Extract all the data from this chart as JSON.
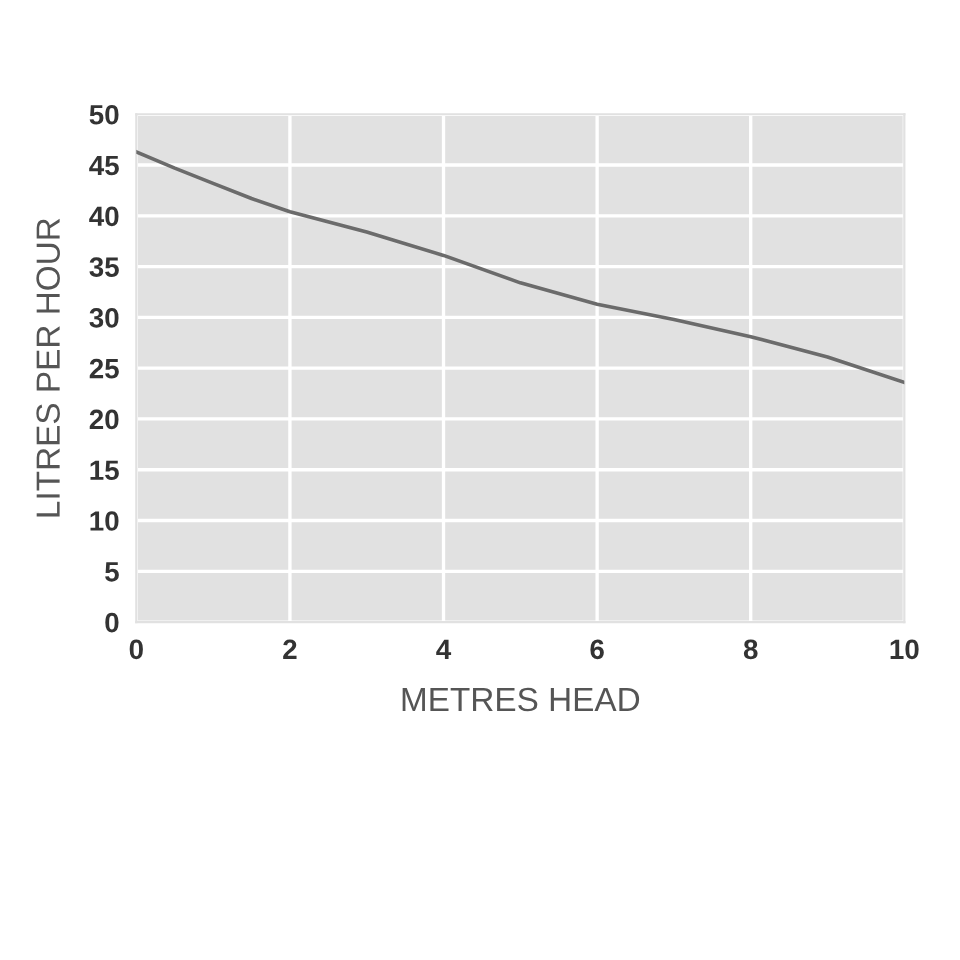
{
  "chart_data": {
    "type": "line",
    "xlabel": "METRES HEAD",
    "ylabel": "LITRES PER HOUR",
    "x": [
      0,
      0.5,
      1,
      1.5,
      2,
      3,
      4,
      5,
      6,
      7,
      8,
      9,
      10
    ],
    "series": [
      {
        "color": "#6b6b6b",
        "values": [
          46.3,
          44.7,
          43.2,
          41.7,
          40.4,
          38.4,
          36.1,
          33.4,
          31.3,
          29.8,
          28.1,
          26.1,
          23.6
        ]
      }
    ],
    "xlim": [
      0,
      10
    ],
    "xticks": [
      0,
      2,
      4,
      6,
      8,
      10
    ],
    "ylim": [
      0,
      50
    ],
    "yticks": [
      0,
      5,
      10,
      15,
      20,
      25,
      30,
      35,
      40,
      45,
      50
    ],
    "grid": true,
    "marker": "none",
    "line_style": "solid"
  }
}
